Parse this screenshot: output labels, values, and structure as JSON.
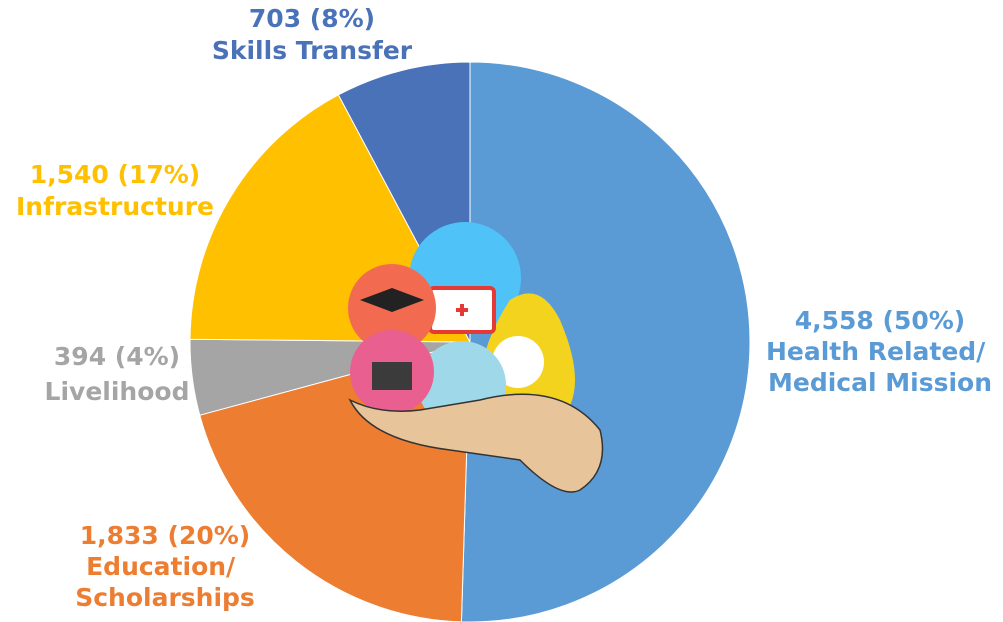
{
  "chart_data": {
    "type": "pie",
    "categories": [
      "Health Related/ Medical Mission",
      "Education/ Scholarships",
      "Livelihood",
      "Infrastructure",
      "Skills Transfer"
    ],
    "values": [
      4558,
      1833,
      394,
      1540,
      703
    ],
    "value_labels": [
      "4,558 (50%)",
      "1,833 (20%)",
      "394 (4%)",
      "1,540 (17%)",
      "703 (8%)"
    ],
    "colors": [
      "#5b9bd5",
      "#ed7d31",
      "#a5a5a5",
      "#ffc000",
      "#4a72b8"
    ]
  }
}
